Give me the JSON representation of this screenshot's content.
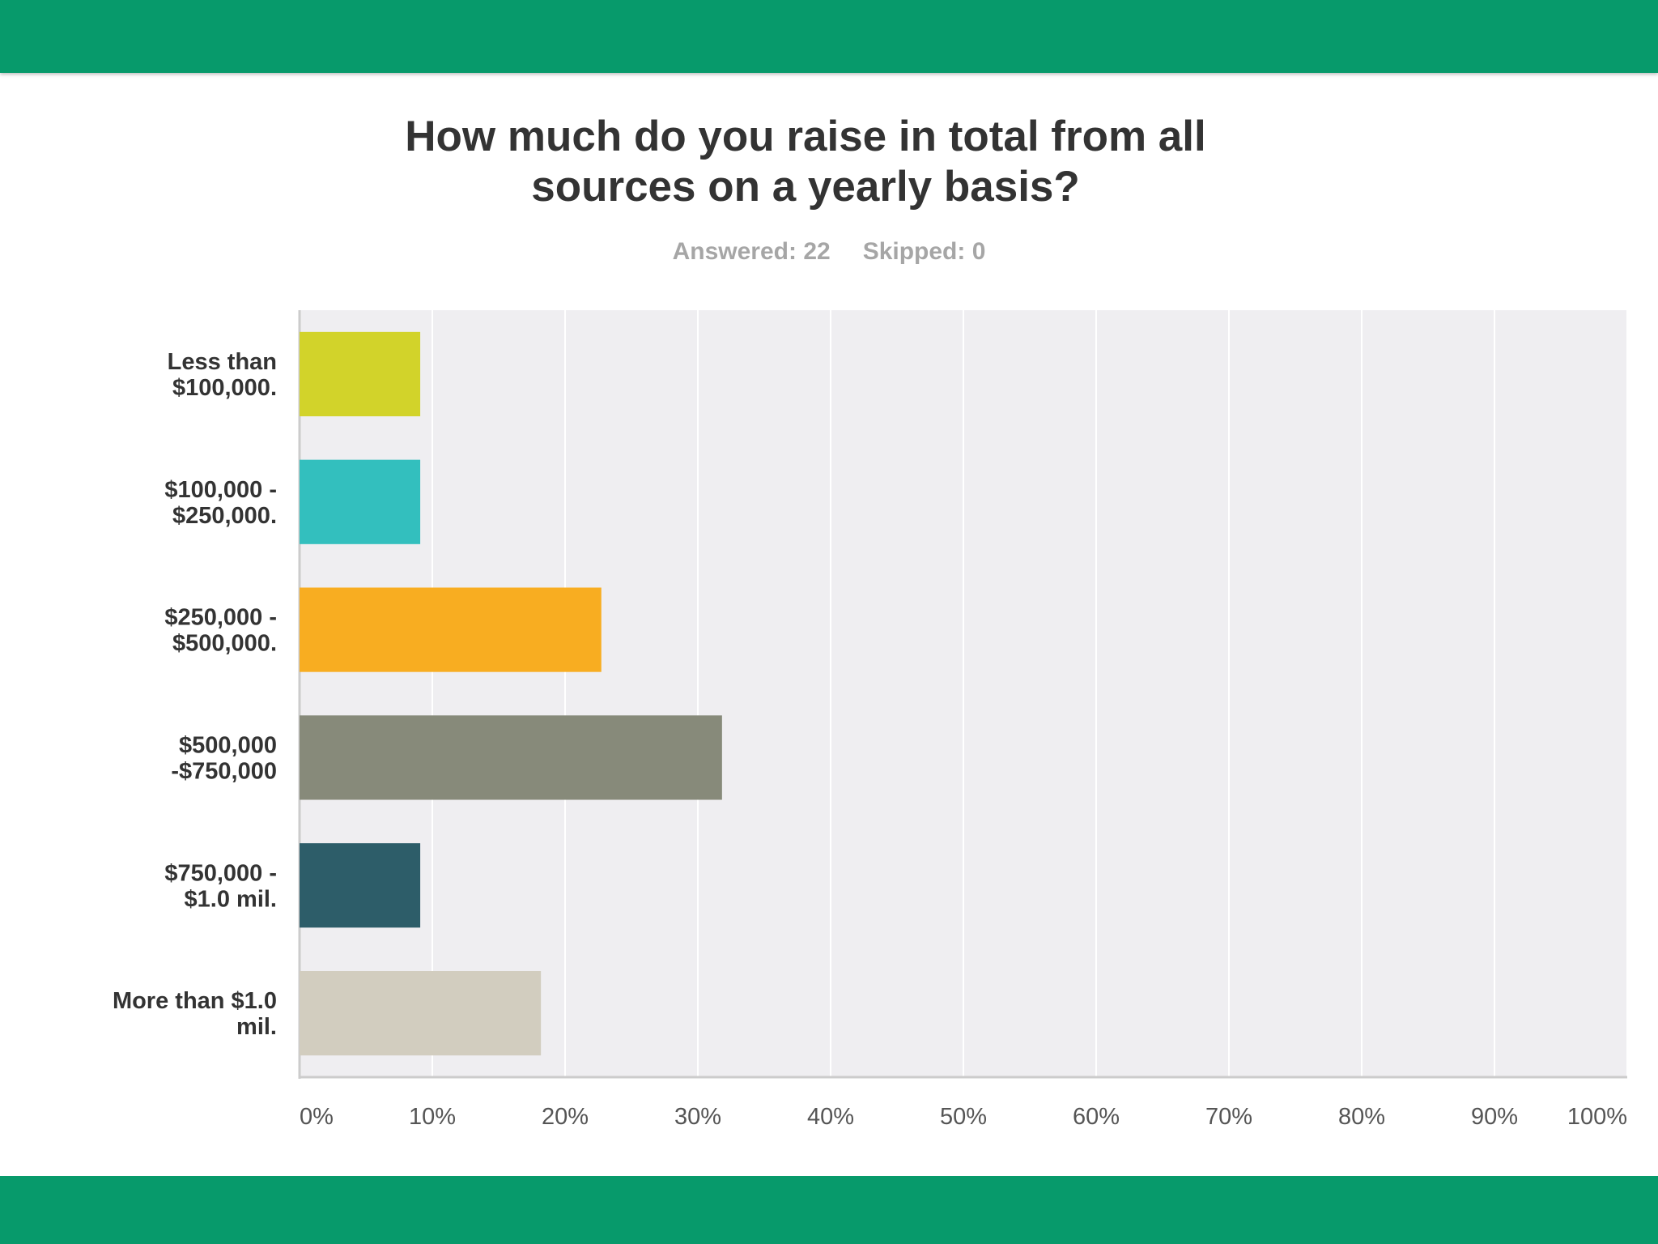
{
  "colors": {
    "band": "#079a6b",
    "plot_bg": "#efeef1",
    "grid": "#ffffff",
    "axis": "#cccccc"
  },
  "header": {
    "title_line1": "How much do you raise in total from all",
    "title_line2": "sources on a yearly basis?",
    "answered": "Answered: 22",
    "skipped": "Skipped: 0"
  },
  "chart_data": {
    "type": "bar",
    "orientation": "horizontal",
    "title": "How much do you raise in total from all sources on a yearly basis?",
    "categories": [
      [
        "Less than",
        "$100,000."
      ],
      [
        "$100,000 -",
        "$250,000."
      ],
      [
        "$250,000 -",
        "$500,000."
      ],
      [
        "$500,000",
        "-$750,000"
      ],
      [
        "$750,000 -",
        "$1.0 mil."
      ],
      [
        "More than $1.0",
        "mil."
      ]
    ],
    "values": [
      9.09,
      9.09,
      22.73,
      31.82,
      9.09,
      18.18
    ],
    "colors": [
      "#d2d32a",
      "#33bfbe",
      "#f8ad21",
      "#878a7a",
      "#2d5d69",
      "#d2cdbf"
    ],
    "xlim": [
      0,
      100
    ],
    "xticks": [
      0,
      10,
      20,
      30,
      40,
      50,
      60,
      70,
      80,
      90,
      100
    ],
    "xtick_labels": [
      "0%",
      "10%",
      "20%",
      "30%",
      "40%",
      "50%",
      "60%",
      "70%",
      "80%",
      "90%",
      "100%"
    ],
    "xlabel": "",
    "ylabel": "",
    "grid": true,
    "legend": "none"
  }
}
